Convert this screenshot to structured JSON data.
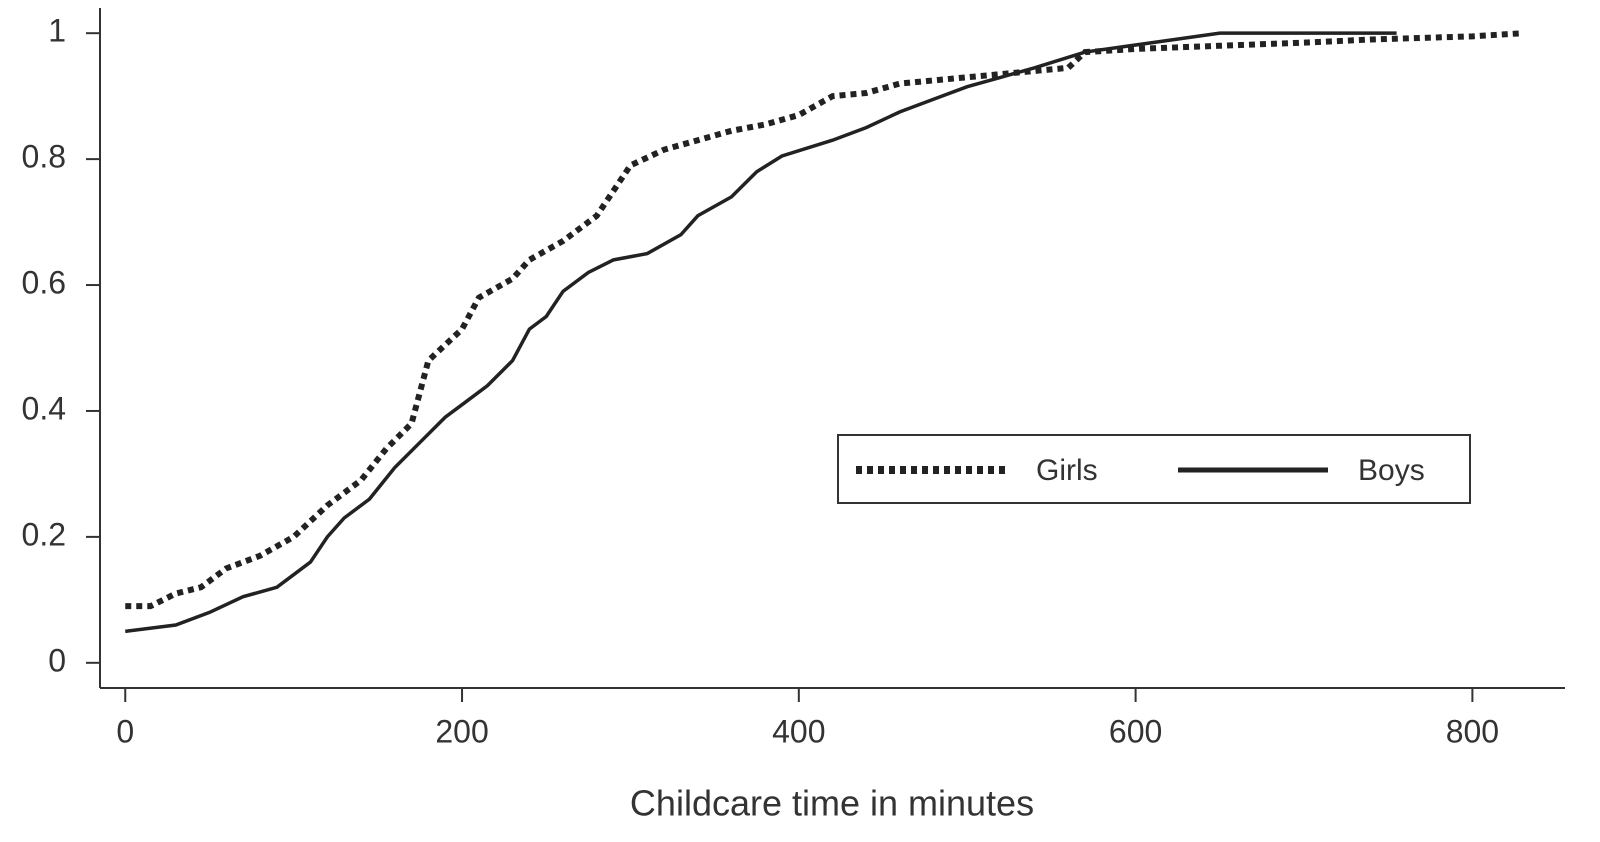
{
  "chart_data": {
    "type": "line",
    "x_label": "Childcare time in minutes",
    "xlim": [
      -15,
      855
    ],
    "xticks": [
      0,
      200,
      400,
      600,
      800
    ],
    "ylim": [
      -0.04,
      1.04
    ],
    "yticks": [
      0,
      0.2,
      0.4,
      0.6,
      0.8,
      1
    ],
    "legend": "right",
    "series": [
      {
        "name": "Girls",
        "color": "#222222",
        "dash": "dotted",
        "x": [
          0,
          15,
          30,
          45,
          60,
          80,
          100,
          120,
          140,
          155,
          170,
          180,
          200,
          210,
          230,
          240,
          260,
          280,
          300,
          320,
          340,
          360,
          380,
          400,
          420,
          440,
          460,
          480,
          520,
          560,
          570,
          600,
          650,
          700,
          740,
          800,
          830
        ],
        "values": [
          0.09,
          0.09,
          0.11,
          0.12,
          0.15,
          0.17,
          0.2,
          0.25,
          0.29,
          0.34,
          0.38,
          0.48,
          0.53,
          0.58,
          0.61,
          0.64,
          0.67,
          0.71,
          0.79,
          0.815,
          0.83,
          0.845,
          0.855,
          0.87,
          0.9,
          0.905,
          0.92,
          0.925,
          0.935,
          0.945,
          0.97,
          0.975,
          0.98,
          0.985,
          0.99,
          0.995,
          1.0
        ]
      },
      {
        "name": "Boys",
        "color": "#222222",
        "dash": "solid",
        "x": [
          0,
          30,
          50,
          70,
          90,
          100,
          110,
          120,
          130,
          145,
          160,
          175,
          190,
          200,
          215,
          230,
          240,
          250,
          260,
          275,
          290,
          310,
          330,
          340,
          360,
          375,
          390,
          420,
          440,
          460,
          480,
          500,
          520,
          540,
          570,
          610,
          650,
          755
        ],
        "values": [
          0.05,
          0.06,
          0.08,
          0.105,
          0.12,
          0.14,
          0.16,
          0.2,
          0.23,
          0.26,
          0.31,
          0.35,
          0.39,
          0.41,
          0.44,
          0.48,
          0.53,
          0.55,
          0.59,
          0.62,
          0.64,
          0.65,
          0.68,
          0.71,
          0.74,
          0.78,
          0.805,
          0.83,
          0.85,
          0.875,
          0.895,
          0.915,
          0.93,
          0.945,
          0.97,
          0.985,
          1.0,
          1.0
        ]
      }
    ]
  }
}
